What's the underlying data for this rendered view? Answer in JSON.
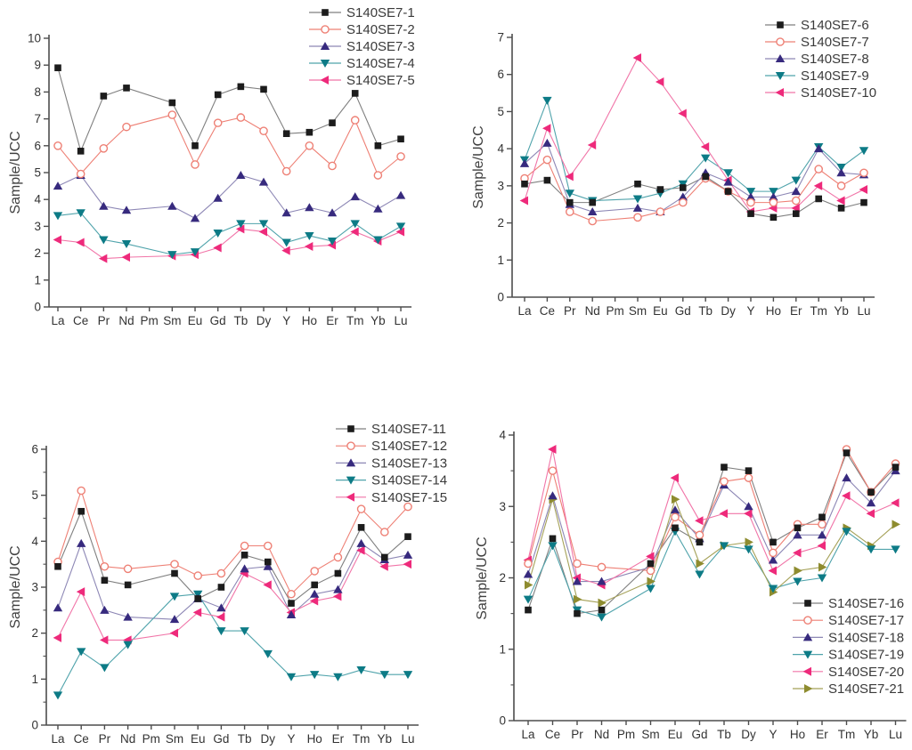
{
  "figure": {
    "background": "#ffffff",
    "ylabel": "Sample/UCC",
    "axis_color": "#4d4d4d",
    "tick_label_color": "#333333",
    "legend_text_color": "#3a3a3a"
  },
  "chart_data": [
    {
      "type": "line",
      "panel": "top-left",
      "title": "",
      "xlabel": "",
      "ylabel": "Sample/UCC",
      "ylim": [
        0,
        10
      ],
      "ytick_step": 1,
      "minor_ticks": false,
      "grid": false,
      "legend_position": "top-right",
      "categories": [
        "La",
        "Ce",
        "Pr",
        "Nd",
        "Pm",
        "Sm",
        "Eu",
        "Gd",
        "Tb",
        "Dy",
        "Y",
        "Ho",
        "Er",
        "Tm",
        "Yb",
        "Lu"
      ],
      "value_category_indices": [
        0,
        1,
        2,
        3,
        5,
        6,
        7,
        8,
        9,
        10,
        11,
        12,
        13,
        14,
        15
      ],
      "series": [
        {
          "name": "S140SE7-1",
          "marker": "square",
          "marker_color": "#1c1c1c",
          "line_color": "#7f7f7f",
          "values": [
            8.9,
            5.8,
            7.85,
            8.15,
            7.6,
            6.0,
            7.9,
            8.2,
            8.1,
            6.45,
            6.5,
            6.85,
            7.95,
            6.0,
            6.25
          ]
        },
        {
          "name": "S140SE7-2",
          "marker": "circle-open",
          "marker_color": "#ee8075",
          "line_color": "#ee8075",
          "values": [
            6.0,
            4.95,
            5.9,
            6.7,
            7.15,
            5.3,
            6.85,
            7.05,
            6.55,
            5.05,
            6.0,
            5.25,
            6.95,
            4.9,
            5.6
          ]
        },
        {
          "name": "S140SE7-3",
          "marker": "triangle-up",
          "marker_color": "#372a7e",
          "line_color": "#8d87b5",
          "values": [
            4.5,
            4.9,
            3.75,
            3.6,
            3.75,
            3.3,
            4.05,
            4.9,
            4.65,
            3.5,
            3.7,
            3.5,
            4.1,
            3.65,
            4.15
          ]
        },
        {
          "name": "S140SE7-4",
          "marker": "triangle-down",
          "marker_color": "#0d7b86",
          "line_color": "#4fa3ab",
          "values": [
            3.4,
            3.5,
            2.5,
            2.35,
            1.95,
            2.05,
            2.75,
            3.1,
            3.1,
            2.4,
            2.65,
            2.45,
            3.1,
            2.5,
            3.0
          ]
        },
        {
          "name": "S140SE7-5",
          "marker": "triangle-left",
          "marker_color": "#ee2a7b",
          "line_color": "#f175a8",
          "values": [
            2.5,
            2.4,
            1.8,
            1.85,
            1.9,
            1.95,
            2.2,
            2.9,
            2.8,
            2.1,
            2.25,
            2.3,
            2.8,
            2.45,
            2.8
          ]
        }
      ]
    },
    {
      "type": "line",
      "panel": "top-right",
      "title": "",
      "xlabel": "",
      "ylabel": "Sample/UCC",
      "ylim": [
        0,
        7
      ],
      "ytick_step": 1,
      "minor_ticks": false,
      "grid": false,
      "legend_position": "top-right",
      "categories": [
        "La",
        "Ce",
        "Pr",
        "Nd",
        "Pm",
        "Sm",
        "Eu",
        "Gd",
        "Tb",
        "Dy",
        "Y",
        "Ho",
        "Er",
        "Tm",
        "Yb",
        "Lu"
      ],
      "value_category_indices": [
        0,
        1,
        2,
        3,
        5,
        6,
        7,
        8,
        9,
        10,
        11,
        12,
        13,
        14,
        15
      ],
      "series": [
        {
          "name": "S140SE7-6",
          "marker": "square",
          "marker_color": "#1c1c1c",
          "line_color": "#7f7f7f",
          "values": [
            3.05,
            3.15,
            2.55,
            2.55,
            3.05,
            2.9,
            2.95,
            3.25,
            2.85,
            2.25,
            2.15,
            2.25,
            2.65,
            2.4,
            2.55
          ]
        },
        {
          "name": "S140SE7-7",
          "marker": "circle-open",
          "marker_color": "#ee8075",
          "line_color": "#ee8075",
          "values": [
            3.2,
            3.7,
            2.3,
            2.05,
            2.15,
            2.3,
            2.55,
            3.2,
            2.85,
            2.55,
            2.55,
            2.6,
            3.45,
            3.0,
            3.35
          ]
        },
        {
          "name": "S140SE7-8",
          "marker": "triangle-up",
          "marker_color": "#372a7e",
          "line_color": "#8d87b5",
          "values": [
            3.6,
            4.15,
            2.5,
            2.3,
            2.4,
            2.3,
            2.7,
            3.35,
            3.1,
            2.7,
            2.7,
            2.85,
            4.0,
            3.35,
            3.3
          ]
        },
        {
          "name": "S140SE7-9",
          "marker": "triangle-down",
          "marker_color": "#0d7b86",
          "line_color": "#4fa3ab",
          "values": [
            3.7,
            5.3,
            2.8,
            2.6,
            2.65,
            2.8,
            3.05,
            3.75,
            3.35,
            2.85,
            2.85,
            3.15,
            4.05,
            3.5,
            3.95
          ]
        },
        {
          "name": "S140SE7-10",
          "marker": "triangle-left",
          "marker_color": "#ee2a7b",
          "line_color": "#f175a8",
          "values": [
            2.6,
            4.55,
            3.25,
            4.1,
            6.45,
            5.8,
            4.95,
            4.05,
            3.15,
            2.3,
            2.4,
            2.4,
            3.0,
            2.6,
            2.9
          ]
        }
      ]
    },
    {
      "type": "line",
      "panel": "bottom-left",
      "title": "",
      "xlabel": "",
      "ylabel": "Sample/UCC",
      "ylim": [
        0,
        6
      ],
      "ytick_step": 1,
      "minor_ticks": true,
      "grid": false,
      "legend_position": "top-right",
      "categories": [
        "La",
        "Ce",
        "Pr",
        "Nd",
        "Pm",
        "Sm",
        "Eu",
        "Gd",
        "Tb",
        "Dy",
        "Y",
        "Ho",
        "Er",
        "Tm",
        "Yb",
        "Lu"
      ],
      "value_category_indices": [
        0,
        1,
        2,
        3,
        5,
        6,
        7,
        8,
        9,
        10,
        11,
        12,
        13,
        14,
        15
      ],
      "series": [
        {
          "name": "S140SE7-11",
          "marker": "square",
          "marker_color": "#1c1c1c",
          "line_color": "#7f7f7f",
          "values": [
            3.45,
            4.65,
            3.15,
            3.05,
            3.3,
            2.75,
            3.0,
            3.7,
            3.55,
            2.65,
            3.05,
            3.3,
            4.3,
            3.65,
            4.1
          ]
        },
        {
          "name": "S140SE7-12",
          "marker": "circle-open",
          "marker_color": "#ee8075",
          "line_color": "#ee8075",
          "values": [
            3.55,
            5.1,
            3.45,
            3.4,
            3.5,
            3.25,
            3.3,
            3.9,
            3.9,
            2.85,
            3.35,
            3.65,
            4.7,
            4.2,
            4.75
          ]
        },
        {
          "name": "S140SE7-13",
          "marker": "triangle-up",
          "marker_color": "#372a7e",
          "line_color": "#8d87b5",
          "values": [
            2.55,
            3.95,
            2.5,
            2.35,
            2.3,
            2.75,
            2.55,
            3.4,
            3.45,
            2.4,
            2.85,
            2.95,
            3.95,
            3.6,
            3.7
          ]
        },
        {
          "name": "S140SE7-14",
          "marker": "triangle-down",
          "marker_color": "#0d7b86",
          "line_color": "#4fa3ab",
          "values": [
            0.65,
            1.6,
            1.25,
            1.75,
            2.8,
            2.85,
            2.05,
            2.05,
            1.55,
            1.05,
            1.1,
            1.05,
            1.2,
            1.1,
            1.1
          ]
        },
        {
          "name": "S140SE7-15",
          "marker": "triangle-left",
          "marker_color": "#ee2a7b",
          "line_color": "#f175a8",
          "values": [
            1.9,
            2.9,
            1.85,
            1.85,
            2.0,
            2.45,
            2.35,
            3.3,
            3.05,
            2.45,
            2.7,
            2.8,
            3.8,
            3.45,
            3.5
          ]
        }
      ]
    },
    {
      "type": "line",
      "panel": "bottom-right",
      "title": "",
      "xlabel": "",
      "ylabel": "Sample/UCC",
      "ylim": [
        0,
        4
      ],
      "ytick_step": 1,
      "minor_ticks": true,
      "grid": false,
      "legend_position": "right-inset",
      "categories": [
        "La",
        "Ce",
        "Pr",
        "Nd",
        "Pm",
        "Sm",
        "Eu",
        "Gd",
        "Tb",
        "Dy",
        "Y",
        "Ho",
        "Er",
        "Tm",
        "Yb",
        "Lu"
      ],
      "value_category_indices": [
        0,
        1,
        2,
        3,
        5,
        6,
        7,
        8,
        9,
        10,
        11,
        12,
        13,
        14,
        15
      ],
      "series": [
        {
          "name": "S140SE7-16",
          "marker": "square",
          "marker_color": "#1c1c1c",
          "line_color": "#7f7f7f",
          "values": [
            1.55,
            2.55,
            1.5,
            1.55,
            2.2,
            2.7,
            2.5,
            3.55,
            3.5,
            2.5,
            2.7,
            2.85,
            3.75,
            3.2,
            3.55
          ]
        },
        {
          "name": "S140SE7-17",
          "marker": "circle-open",
          "marker_color": "#ee8075",
          "line_color": "#ee8075",
          "values": [
            2.2,
            3.5,
            2.2,
            2.15,
            2.1,
            2.85,
            2.6,
            3.35,
            3.4,
            2.35,
            2.75,
            2.75,
            3.8,
            3.2,
            3.6
          ]
        },
        {
          "name": "S140SE7-18",
          "marker": "triangle-up",
          "marker_color": "#372a7e",
          "line_color": "#8d87b5",
          "values": [
            2.05,
            3.15,
            1.95,
            1.95,
            2.15,
            2.95,
            2.55,
            3.3,
            3.0,
            2.25,
            2.6,
            2.6,
            3.4,
            3.05,
            3.5
          ]
        },
        {
          "name": "S140SE7-19",
          "marker": "triangle-down",
          "marker_color": "#0d7b86",
          "line_color": "#4fa3ab",
          "values": [
            1.7,
            2.45,
            1.55,
            1.45,
            1.85,
            2.65,
            2.05,
            2.45,
            2.4,
            1.85,
            1.95,
            2.0,
            2.65,
            2.4,
            2.4
          ]
        },
        {
          "name": "S140SE7-20",
          "marker": "triangle-left",
          "marker_color": "#ee2a7b",
          "line_color": "#f175a8",
          "values": [
            2.25,
            3.8,
            2.0,
            1.9,
            2.3,
            3.4,
            2.8,
            2.9,
            2.9,
            2.1,
            2.35,
            2.45,
            3.15,
            2.9,
            3.05
          ]
        },
        {
          "name": "S140SE7-21",
          "marker": "triangle-right",
          "marker_color": "#8e8c2f",
          "line_color": "#a5a158",
          "values": [
            1.9,
            3.1,
            1.7,
            1.65,
            1.95,
            3.1,
            2.2,
            2.45,
            2.5,
            1.8,
            2.1,
            2.15,
            2.7,
            2.45,
            2.75
          ]
        }
      ]
    }
  ]
}
